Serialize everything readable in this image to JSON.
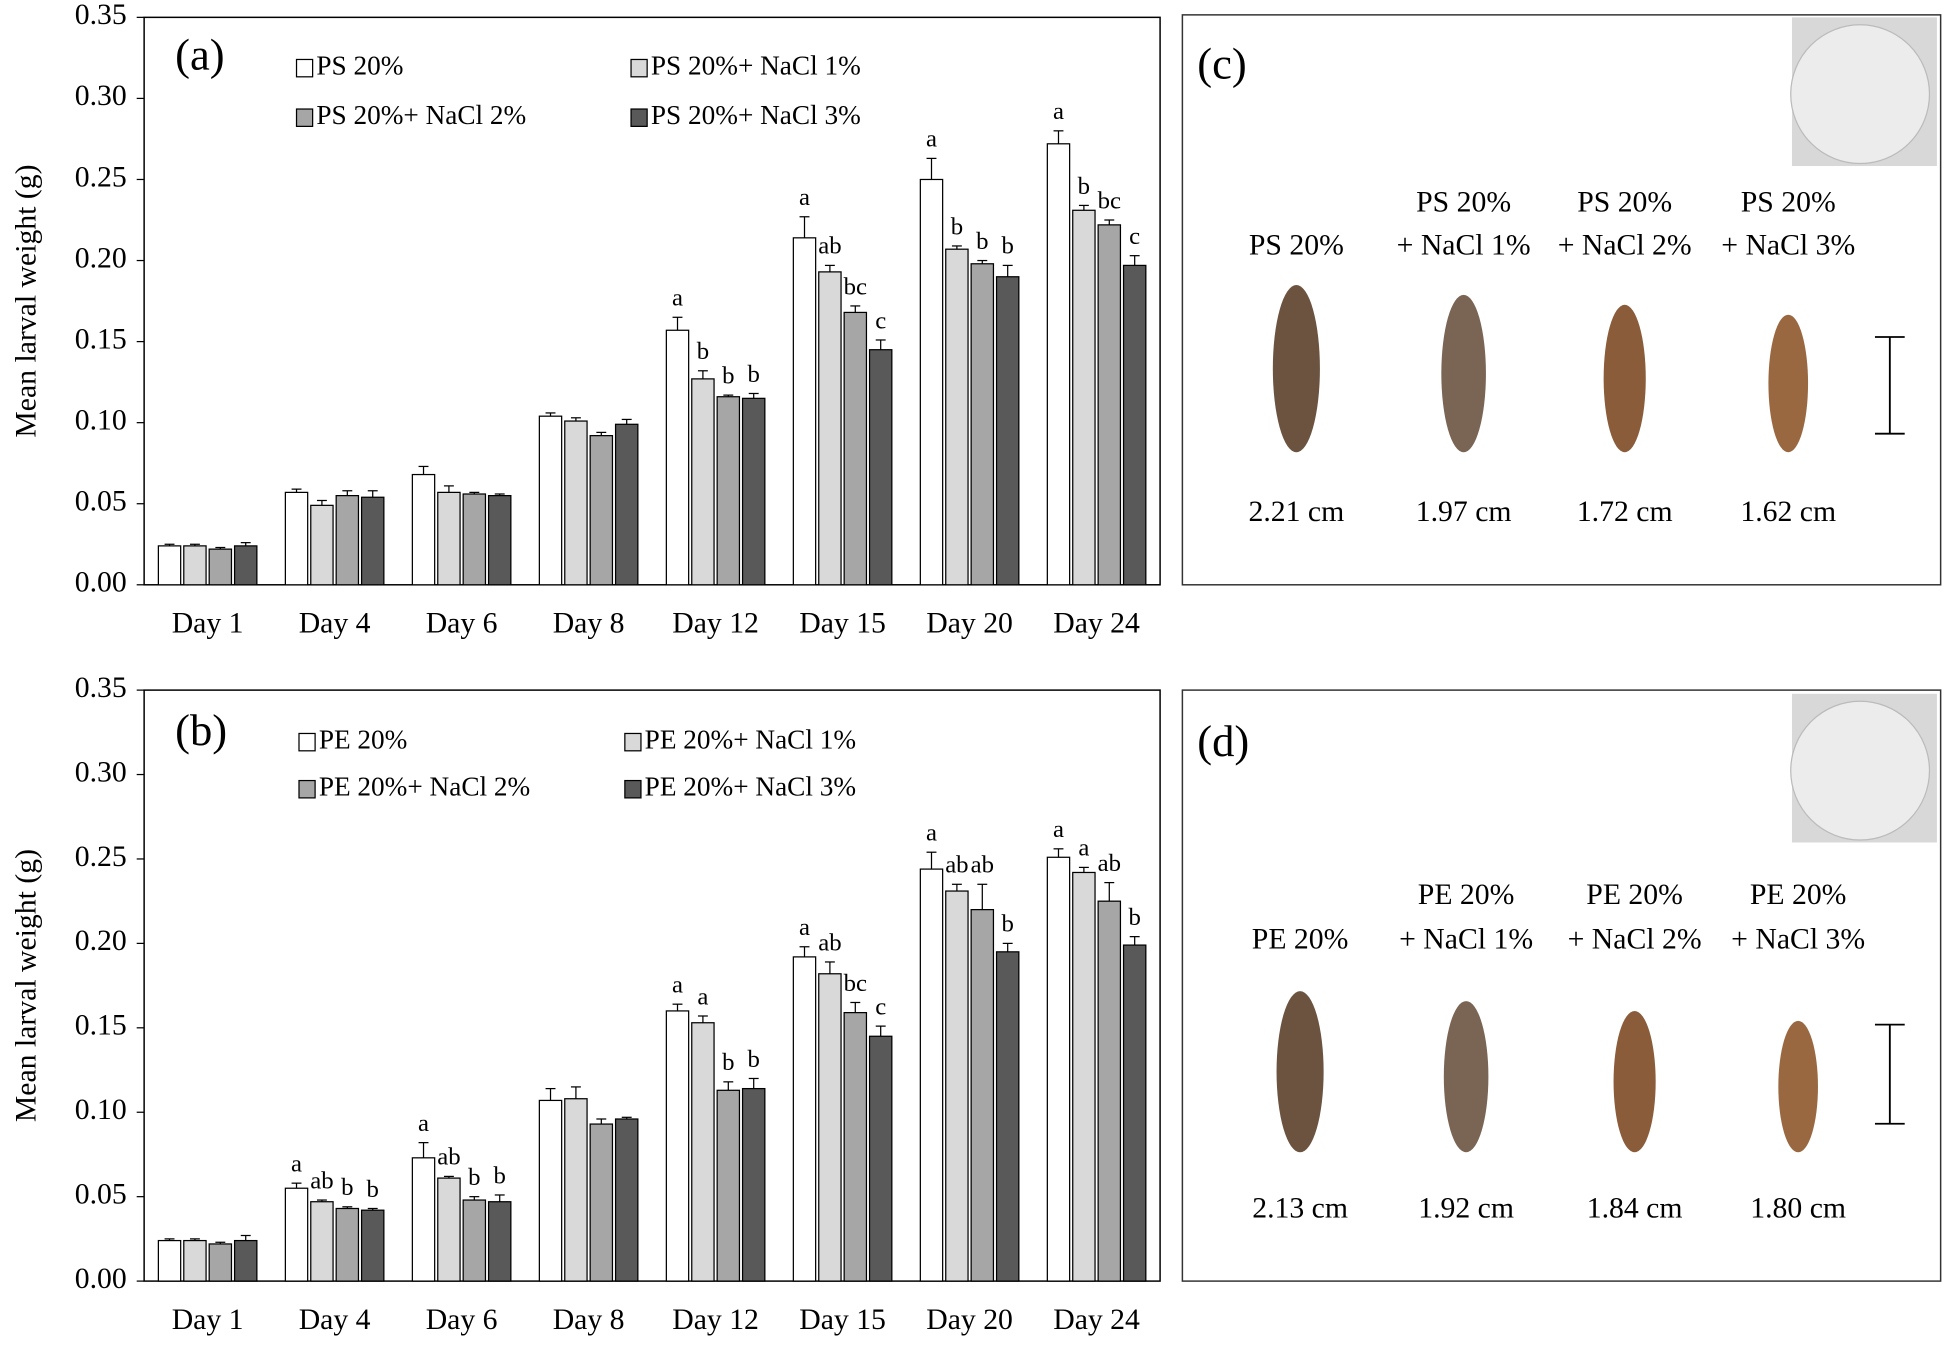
{
  "chart_data": [
    {
      "type": "bar",
      "panel_label": "(a)",
      "ylabel": "Mean larval weight (g)",
      "categories": [
        "Day 1",
        "Day 4",
        "Day 6",
        "Day 8",
        "Day 12",
        "Day 15",
        "Day 20",
        "Day 24"
      ],
      "ylim": [
        0,
        0.35
      ],
      "yticks": [
        {
          "value": 0,
          "label": "0.00"
        },
        0.05,
        {
          "value": 0.1,
          "label": "0.10"
        },
        0.15,
        {
          "value": 0.2,
          "label": "0.20"
        },
        0.25,
        {
          "value": 0.3,
          "label": "0.30"
        },
        0.35
      ],
      "series": [
        {
          "name": "PS 20%",
          "color": "#ffffff",
          "values": [
            0.024,
            0.057,
            0.068,
            0.104,
            0.157,
            0.214,
            0.25,
            0.272
          ],
          "errors": [
            0.001,
            0.002,
            0.005,
            0.002,
            0.008,
            0.013,
            0.013,
            0.008
          ],
          "letters": [
            null,
            null,
            null,
            null,
            "a",
            "a",
            "a",
            "a"
          ]
        },
        {
          "name": "PS 20%+ NaCl 1%",
          "color": "#d9d9d9",
          "values": [
            0.024,
            0.049,
            0.057,
            0.101,
            0.127,
            0.193,
            0.207,
            0.231
          ],
          "errors": [
            0.001,
            0.003,
            0.004,
            0.002,
            0.005,
            0.004,
            0.002,
            0.003
          ],
          "letters": [
            null,
            null,
            null,
            null,
            "b",
            "ab",
            "b",
            "b"
          ]
        },
        {
          "name": "PS 20%+ NaCl 2%",
          "color": "#a6a6a6",
          "values": [
            0.022,
            0.055,
            0.056,
            0.092,
            0.116,
            0.168,
            0.198,
            0.222
          ],
          "errors": [
            0.001,
            0.003,
            0.001,
            0.002,
            0.001,
            0.004,
            0.002,
            0.003
          ],
          "letters": [
            null,
            null,
            null,
            null,
            "b",
            "bc",
            "b",
            "bc"
          ]
        },
        {
          "name": "PS 20%+ NaCl 3%",
          "color": "#595959",
          "values": [
            0.024,
            0.054,
            0.055,
            0.099,
            0.115,
            0.145,
            0.19,
            0.197
          ],
          "errors": [
            0.002,
            0.004,
            0.001,
            0.003,
            0.003,
            0.006,
            0.007,
            0.006
          ],
          "letters": [
            null,
            null,
            null,
            null,
            "b",
            "c",
            "b",
            "c"
          ]
        }
      ]
    },
    {
      "type": "bar",
      "panel_label": "(b)",
      "ylabel": "Mean larval weight (g)",
      "categories": [
        "Day 1",
        "Day 4",
        "Day 6",
        "Day 8",
        "Day 12",
        "Day 15",
        "Day 20",
        "Day 24"
      ],
      "ylim": [
        0,
        0.35
      ],
      "yticks": [
        {
          "value": 0,
          "label": "0.00"
        },
        0.05,
        {
          "value": 0.1,
          "label": "0.10"
        },
        0.15,
        {
          "value": 0.2,
          "label": "0.20"
        },
        0.25,
        {
          "value": 0.3,
          "label": "0.30"
        },
        0.35
      ],
      "series": [
        {
          "name": "PE 20%",
          "color": "#ffffff",
          "values": [
            0.024,
            0.055,
            0.073,
            0.107,
            0.16,
            0.192,
            0.244,
            0.251
          ],
          "errors": [
            0.001,
            0.003,
            0.009,
            0.007,
            0.004,
            0.006,
            0.01,
            0.005
          ],
          "letters": [
            null,
            "a",
            "a",
            null,
            "a",
            "a",
            "a",
            "a"
          ]
        },
        {
          "name": "PE 20%+ NaCl 1%",
          "color": "#d9d9d9",
          "values": [
            0.024,
            0.047,
            0.061,
            0.108,
            0.153,
            0.182,
            0.231,
            0.242
          ],
          "errors": [
            0.001,
            0.001,
            0.001,
            0.007,
            0.004,
            0.007,
            0.004,
            0.003
          ],
          "letters": [
            null,
            "ab",
            "ab",
            null,
            "a",
            "ab",
            "ab",
            "a"
          ]
        },
        {
          "name": "PE 20%+ NaCl 2%",
          "color": "#a6a6a6",
          "values": [
            0.022,
            0.043,
            0.048,
            0.093,
            0.113,
            0.159,
            0.22,
            0.225
          ],
          "errors": [
            0.001,
            0.001,
            0.002,
            0.003,
            0.005,
            0.006,
            0.015,
            0.011
          ],
          "letters": [
            null,
            "b",
            "b",
            null,
            "b",
            "bc",
            "ab",
            "ab"
          ]
        },
        {
          "name": "PE 20%+ NaCl 3%",
          "color": "#595959",
          "values": [
            0.024,
            0.042,
            0.047,
            0.096,
            0.114,
            0.145,
            0.195,
            0.199
          ],
          "errors": [
            0.003,
            0.001,
            0.004,
            0.001,
            0.006,
            0.006,
            0.005,
            0.005
          ],
          "letters": [
            null,
            "b",
            "b",
            null,
            "b",
            "c",
            "b",
            "b"
          ]
        }
      ]
    }
  ],
  "photo_panels": [
    {
      "label": "(c)",
      "items": [
        {
          "name": [
            "PS 20%"
          ],
          "length": "2.21 cm"
        },
        {
          "name": [
            "PS 20%",
            "+ NaCl 1%"
          ],
          "length": "1.97 cm"
        },
        {
          "name": [
            "PS 20%",
            "+ NaCl 2%"
          ],
          "length": "1.72 cm"
        },
        {
          "name": [
            "PS 20%",
            "+ NaCl 3%"
          ],
          "length": "1.62 cm"
        }
      ]
    },
    {
      "label": "(d)",
      "items": [
        {
          "name": [
            "PE 20%"
          ],
          "length": "2.13 cm"
        },
        {
          "name": [
            "PE 20%",
            "+ NaCl 1%"
          ],
          "length": "1.92 cm"
        },
        {
          "name": [
            "PE 20%",
            "+ NaCl 2%"
          ],
          "length": "1.84 cm"
        },
        {
          "name": [
            "PE 20%",
            "+ NaCl 3%"
          ],
          "length": "1.80 cm"
        }
      ]
    }
  ]
}
